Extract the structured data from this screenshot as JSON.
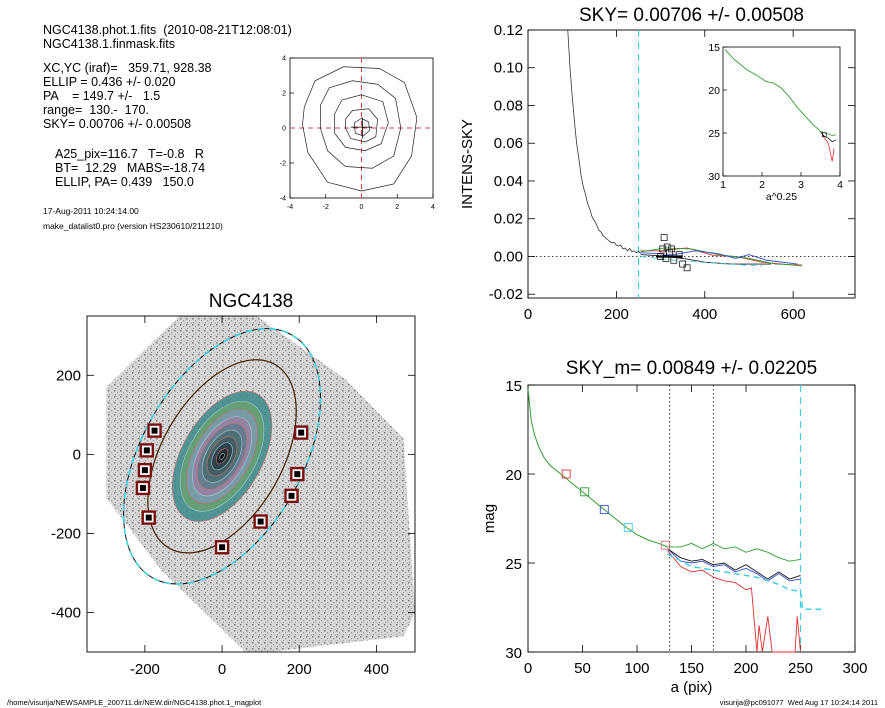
{
  "header": {
    "line1": "NGC4138.phot.1.fits  (2010-08-21T12:08:01)",
    "line2": "NGC4138.1.finmask.fits",
    "params": [
      "XC,YC (iraf)=   359.71, 928.38",
      "ELLIP = 0.436 +/- 0.020",
      "PA    = 149.7 +/-   1.5",
      "range=  130.-  170.",
      "SKY= 0.00706 +/- 0.00508"
    ],
    "derived": [
      "A25_pix=116.7   T=-0.8   R",
      "BT=  12.29   MABS=-18.74",
      "ELLIP, PA= 0.439   150.0"
    ],
    "date": "17-Aug-2011 10:24:14.00",
    "program": "make_datalist0.pro (version HS230610/211210)"
  },
  "footer": {
    "left": "/home/visurija/NEWSAMPLE_200711.dir/NEW.dir/NGC4138.phot.1_magplot",
    "right": "visurija@pc091077  Wed Aug 17 10:24:14 2011"
  },
  "chart_data": [
    {
      "id": "contour",
      "type": "contour",
      "title": "",
      "xlim": [
        -4,
        4
      ],
      "ylim": [
        -4,
        4
      ],
      "xticks": [
        "-4",
        "-2",
        "0",
        "2",
        "4"
      ],
      "yticks": [
        "-4",
        "-2",
        "0",
        "2",
        "4"
      ],
      "crosshair_color": "#e04040"
    },
    {
      "id": "sky",
      "type": "line",
      "title": "SKY= 0.00706 +/- 0.00508",
      "ylabel": "INTENS-SKY",
      "xlim": [
        0,
        740
      ],
      "ylim": [
        -0.022,
        0.12
      ],
      "xticks": [
        "0",
        "200",
        "400",
        "600"
      ],
      "yticks": [
        "-0.02",
        "0.00",
        "0.02",
        "0.04",
        "0.06",
        "0.08",
        "0.10",
        "0.12"
      ],
      "vline_x": 250,
      "profile": [
        [
          90,
          0.12
        ],
        [
          95,
          0.1
        ],
        [
          100,
          0.085
        ],
        [
          105,
          0.072
        ],
        [
          110,
          0.06
        ],
        [
          115,
          0.052
        ],
        [
          120,
          0.043
        ],
        [
          125,
          0.037
        ],
        [
          130,
          0.033
        ],
        [
          135,
          0.028
        ],
        [
          140,
          0.025
        ],
        [
          145,
          0.021
        ],
        [
          150,
          0.019
        ],
        [
          155,
          0.017
        ],
        [
          160,
          0.014
        ],
        [
          165,
          0.013
        ],
        [
          170,
          0.011
        ],
        [
          175,
          0.01
        ],
        [
          180,
          0.009
        ],
        [
          185,
          0.008
        ],
        [
          190,
          0.0072
        ],
        [
          195,
          0.0075
        ],
        [
          200,
          0.006
        ],
        [
          205,
          0.0055
        ],
        [
          210,
          0.006
        ],
        [
          215,
          0.004
        ],
        [
          220,
          0.0045
        ],
        [
          225,
          0.003
        ],
        [
          230,
          0.0042
        ],
        [
          235,
          0.0025
        ],
        [
          240,
          0.003
        ],
        [
          245,
          0.002
        ],
        [
          250,
          0.0028
        ],
        [
          255,
          0.0015
        ]
      ],
      "series": [
        {
          "name": "",
          "color": "#e03030",
          "points": [
            [
              255,
              0.003
            ],
            [
              300,
              0.003
            ],
            [
              360,
              0.0045
            ],
            [
              420,
              0.0005
            ],
            [
              470,
              0
            ],
            [
              530,
              -0.003
            ],
            [
              620,
              -0.005
            ]
          ]
        },
        {
          "name": "",
          "color": "#30a030",
          "points": [
            [
              255,
              0.0025
            ],
            [
              310,
              0.0045
            ],
            [
              370,
              0.004
            ],
            [
              430,
              0.001
            ],
            [
              500,
              -0.001
            ],
            [
              560,
              -0.004
            ],
            [
              620,
              -0.0045
            ]
          ]
        },
        {
          "name": "",
          "color": "#3050d0",
          "points": [
            [
              255,
              0.002
            ],
            [
              330,
              0.001
            ],
            [
              380,
              0.003
            ],
            [
              430,
              0.0015
            ],
            [
              470,
              -0.001
            ],
            [
              500,
              0.001
            ],
            [
              540,
              -0.002
            ],
            [
              610,
              -0.004
            ]
          ]
        },
        {
          "name": "",
          "color": "#202020",
          "points": [
            [
              255,
              0.001
            ],
            [
              300,
              0.0003
            ],
            [
              350,
              -0.001
            ],
            [
              400,
              -0.003
            ],
            [
              460,
              -0.004
            ],
            [
              550,
              -0.004
            ]
          ]
        },
        {
          "name": "",
          "color": "#40d0e0",
          "dash": true,
          "points": [
            [
              255,
              0
            ],
            [
              330,
              -0.002
            ],
            [
              390,
              -0.003
            ],
            [
              450,
              -0.004
            ],
            [
              530,
              -0.005
            ]
          ]
        }
      ],
      "squares": [
        [
          308,
          0.01
        ],
        [
          315,
          0.005
        ],
        [
          320,
          0.002
        ],
        [
          312,
          -0.001
        ],
        [
          330,
          -0.002
        ],
        [
          325,
          0.004
        ],
        [
          342,
          0.001
        ],
        [
          350,
          -0.004
        ],
        [
          360,
          -0.006
        ],
        [
          305,
          0.004
        ],
        [
          300,
          0
        ]
      ],
      "inset": {
        "xlabel": "a^0.25",
        "xlim": [
          1,
          4
        ],
        "ylim": [
          30,
          15
        ],
        "xticks": [
          "1",
          "2",
          "3",
          "4"
        ],
        "yticks": [
          "15",
          "20",
          "25",
          "30"
        ]
      }
    },
    {
      "id": "image",
      "type": "image",
      "title": "NGC4138",
      "xlim": [
        -350,
        500
      ],
      "ylim": [
        -500,
        350
      ],
      "xticks": [
        "-200",
        "0",
        "200",
        "400"
      ],
      "yticks": [
        "-400",
        "-200",
        "0",
        "200"
      ],
      "markers": [
        [
          -175,
          60
        ],
        [
          -195,
          10
        ],
        [
          -200,
          -40
        ],
        [
          -205,
          -85
        ],
        [
          -190,
          -160
        ],
        [
          0,
          -235
        ],
        [
          100,
          -170
        ],
        [
          180,
          -105
        ],
        [
          195,
          -50
        ],
        [
          205,
          55
        ]
      ]
    },
    {
      "id": "mag",
      "type": "line",
      "title": "SKY_m=  0.00849 +/- 0.02205",
      "ylabel": "mag",
      "xlabel": "a (pix)",
      "xlim": [
        0,
        300
      ],
      "ylim": [
        30,
        15
      ],
      "xticks": [
        "0",
        "50",
        "100",
        "150",
        "200",
        "250",
        "300"
      ],
      "yticks": [
        "15",
        "20",
        "25",
        "30"
      ],
      "vlines_dotted": [
        130,
        170
      ],
      "vline_cyan": 250,
      "squares": [
        {
          "x": 35,
          "y": 20,
          "color": "#e03030"
        },
        {
          "x": 52,
          "y": 21,
          "color": "#30a030"
        },
        {
          "x": 70,
          "y": 22,
          "color": "#3050d0"
        },
        {
          "x": 92,
          "y": 23,
          "color": "#40d0e0"
        },
        {
          "x": 126,
          "y": 24,
          "color": "#e07070"
        }
      ]
    }
  ]
}
